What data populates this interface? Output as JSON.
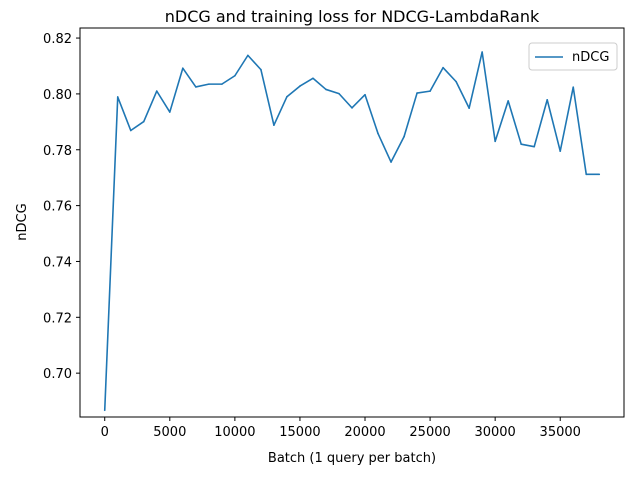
{
  "chart_data": {
    "type": "line",
    "title": "nDCG and training loss for NDCG-LambdaRank",
    "xlabel": "Batch (1 query per batch)",
    "ylabel": "nDCG",
    "xlim": [
      -1900,
      39900
    ],
    "ylim": [
      0.6843,
      0.8236
    ],
    "xticks": [
      0,
      5000,
      10000,
      15000,
      20000,
      25000,
      30000,
      35000
    ],
    "yticks": [
      0.7,
      0.72,
      0.74,
      0.76,
      0.78,
      0.8,
      0.82
    ],
    "xtick_labels": [
      "0",
      "5000",
      "10000",
      "15000",
      "20000",
      "25000",
      "30000",
      "35000"
    ],
    "ytick_labels": [
      "0.70",
      "0.72",
      "0.74",
      "0.76",
      "0.78",
      "0.80",
      "0.82"
    ],
    "grid": false,
    "legend_position": "top-right",
    "series": [
      {
        "name": "nDCG",
        "color": "#1f77b4",
        "x": [
          0,
          1000,
          2000,
          3000,
          4000,
          5000,
          6000,
          7000,
          8000,
          9000,
          10000,
          11000,
          12000,
          13000,
          14000,
          15000,
          16000,
          17000,
          18000,
          19000,
          20000,
          21000,
          22000,
          23000,
          24000,
          25000,
          26000,
          27000,
          28000,
          29000,
          30000,
          31000,
          32000,
          33000,
          34000,
          35000,
          36000,
          37000,
          38000
        ],
        "values": [
          0.6867,
          0.7989,
          0.7869,
          0.7901,
          0.801,
          0.7935,
          0.8092,
          0.8025,
          0.8035,
          0.8035,
          0.8065,
          0.8138,
          0.8087,
          0.7888,
          0.799,
          0.8028,
          0.8056,
          0.8016,
          0.8001,
          0.795,
          0.7997,
          0.7858,
          0.7756,
          0.7847,
          0.8003,
          0.801,
          0.8094,
          0.8044,
          0.7949,
          0.815,
          0.783,
          0.7975,
          0.782,
          0.7811,
          0.7979,
          0.7795,
          0.8024,
          0.7712,
          0.7712
        ]
      }
    ]
  }
}
